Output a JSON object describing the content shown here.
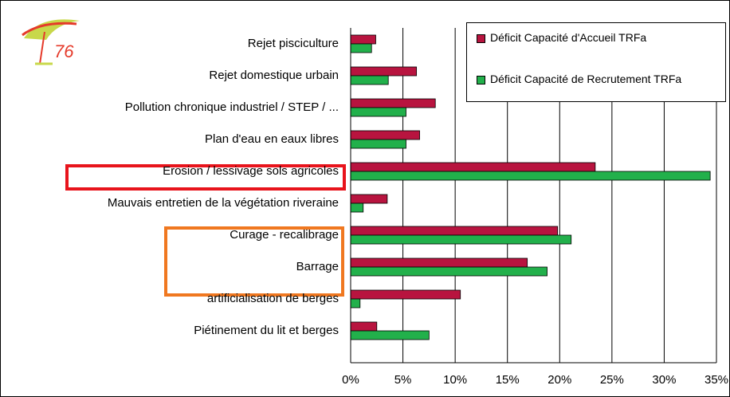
{
  "chart_data": {
    "type": "bar",
    "orientation": "horizontal",
    "logo_text": "76",
    "categories": [
      "Rejet pisciculture",
      "Rejet domestique urbain",
      "Pollution chronique industriel / STEP / ...",
      "Plan d'eau en eaux libres",
      "Erosion / lessivage sols agricoles",
      "Mauvais entretien de la végétation riveraine",
      "Curage - recalibrage",
      "Barrage",
      "artificialisation de berges",
      "Piétinement du lit et berges"
    ],
    "series": [
      {
        "name": "Déficit Capacité d'Accueil TRFa",
        "color": "#b8143f",
        "values": [
          2.4,
          6.3,
          8.1,
          6.6,
          23.4,
          3.5,
          19.8,
          16.9,
          10.5,
          2.5
        ]
      },
      {
        "name": "Déficit Capacité de Recrutement TRFa",
        "color": "#22b04b",
        "values": [
          2.0,
          3.6,
          5.3,
          5.3,
          34.4,
          1.2,
          21.1,
          18.8,
          0.9,
          7.5
        ]
      }
    ],
    "xlim": [
      0,
      35
    ],
    "xticks": [
      {
        "value": 0,
        "label": "0%"
      },
      {
        "value": 5,
        "label": "5%"
      },
      {
        "value": 10,
        "label": "10%"
      },
      {
        "value": 15,
        "label": "15%"
      },
      {
        "value": 20,
        "label": "20%"
      },
      {
        "value": 25,
        "label": "25%"
      },
      {
        "value": 30,
        "label": "30%"
      },
      {
        "value": 35,
        "label": "35%"
      }
    ],
    "grid": true,
    "legend": "top-right"
  }
}
